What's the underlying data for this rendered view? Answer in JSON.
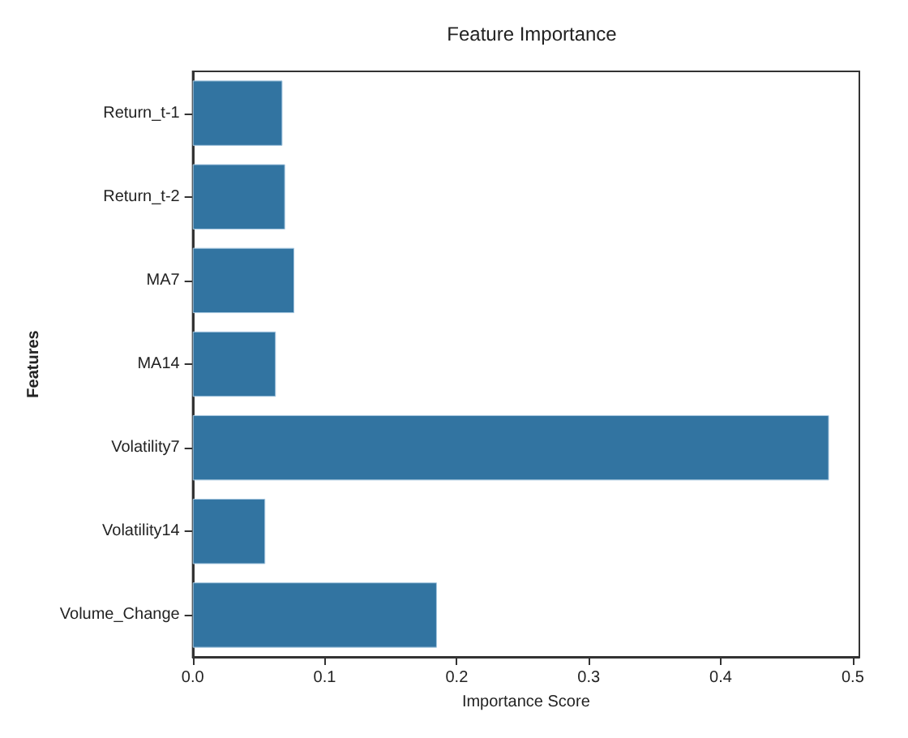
{
  "chart_data": {
    "type": "bar",
    "orientation": "horizontal",
    "title": "Feature Importance",
    "xlabel": "Importance Score",
    "ylabel": "Features",
    "categories": [
      "Return_t-1",
      "Return_t-2",
      "MA7",
      "MA14",
      "Volatility7",
      "Volatility14",
      "Volume_Change"
    ],
    "values": [
      0.068,
      0.07,
      0.077,
      0.063,
      0.482,
      0.055,
      0.185
    ],
    "color": "#3274a1",
    "xlim": [
      0,
      0.505
    ],
    "xticks": [
      {
        "value": 0,
        "label": "0.0"
      },
      0.1,
      0.2,
      0.3,
      0.4,
      0.5
    ],
    "grid": false
  }
}
